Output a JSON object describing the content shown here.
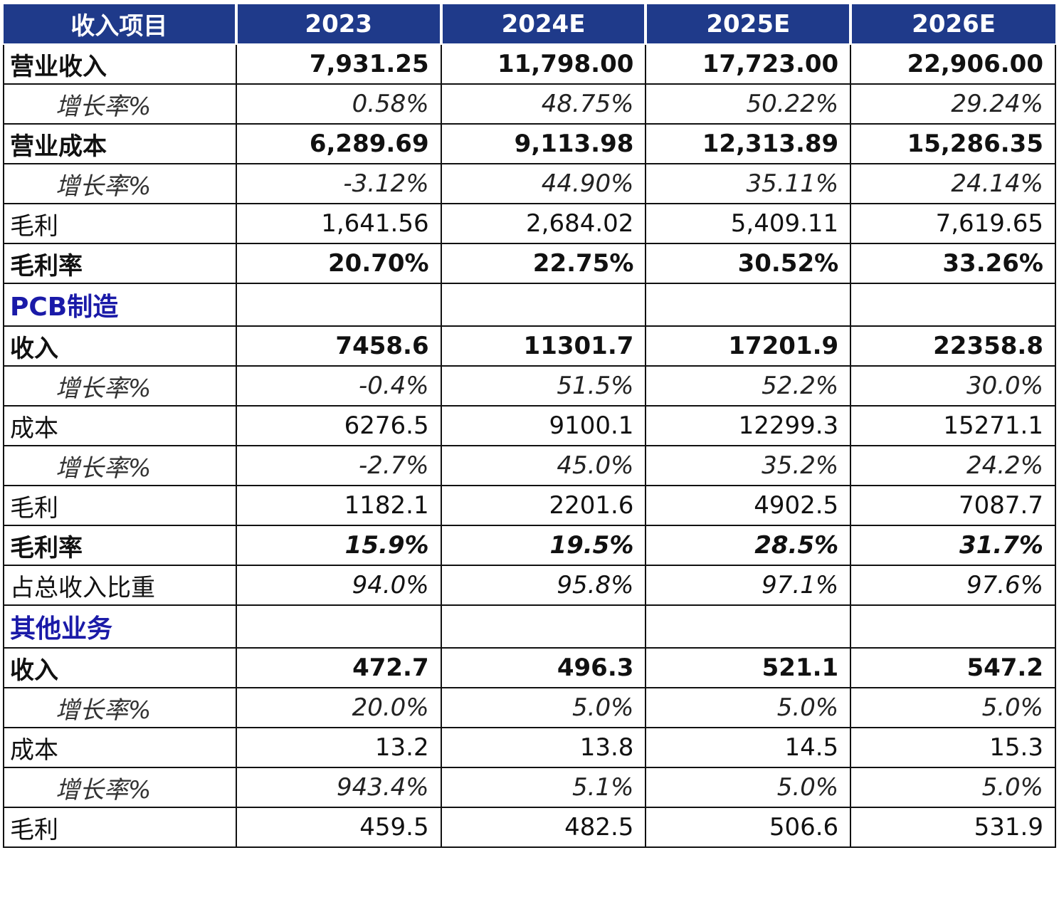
{
  "header": {
    "label": "收入项目",
    "years": [
      "2023",
      "2024E",
      "2025E",
      "2026E"
    ]
  },
  "rows": [
    {
      "type": "bold",
      "label": "营业收入",
      "values": [
        "7,931.25",
        "11,798.00",
        "17,723.00",
        "22,906.00"
      ]
    },
    {
      "type": "rate",
      "label": "增长率%",
      "values": [
        "0.58%",
        "48.75%",
        "50.22%",
        "29.24%"
      ]
    },
    {
      "type": "bold",
      "label": "营业成本",
      "values": [
        "6,289.69",
        "9,113.98",
        "12,313.89",
        "15,286.35"
      ]
    },
    {
      "type": "rate",
      "label": "增长率%",
      "values": [
        "-3.12%",
        "44.90%",
        "35.11%",
        "24.14%"
      ]
    },
    {
      "type": "plain",
      "label": "毛利",
      "values": [
        "1,641.56",
        "2,684.02",
        "5,409.11",
        "7,619.65"
      ]
    },
    {
      "type": "bold",
      "label": "毛利率",
      "values": [
        "20.70%",
        "22.75%",
        "30.52%",
        "33.26%"
      ]
    },
    {
      "type": "section",
      "label": "PCB制造",
      "values": [
        "",
        "",
        "",
        ""
      ]
    },
    {
      "type": "bold",
      "label": "收入",
      "values": [
        "7458.6",
        "11301.7",
        "17201.9",
        "22358.8"
      ]
    },
    {
      "type": "rate",
      "label": "增长率%",
      "values": [
        "-0.4%",
        "51.5%",
        "52.2%",
        "30.0%"
      ]
    },
    {
      "type": "plain",
      "label": "成本",
      "values": [
        "6276.5",
        "9100.1",
        "12299.3",
        "15271.1"
      ]
    },
    {
      "type": "rate",
      "label": "增长率%",
      "values": [
        "-2.7%",
        "45.0%",
        "35.2%",
        "24.2%"
      ]
    },
    {
      "type": "plain",
      "label": "毛利",
      "values": [
        "1182.1",
        "2201.6",
        "4902.5",
        "7087.7"
      ]
    },
    {
      "type": "boldrate",
      "label": "毛利率",
      "values": [
        "15.9%",
        "19.5%",
        "28.5%",
        "31.7%"
      ]
    },
    {
      "type": "ratio",
      "label": "占总收入比重",
      "values": [
        "94.0%",
        "95.8%",
        "97.1%",
        "97.6%"
      ]
    },
    {
      "type": "section",
      "label": "其他业务",
      "values": [
        "",
        "",
        "",
        ""
      ]
    },
    {
      "type": "bold",
      "label": "收入",
      "values": [
        "472.7",
        "496.3",
        "521.1",
        "547.2"
      ]
    },
    {
      "type": "rate",
      "label": "增长率%",
      "values": [
        "20.0%",
        "5.0%",
        "5.0%",
        "5.0%"
      ]
    },
    {
      "type": "plain",
      "label": "成本",
      "values": [
        "13.2",
        "13.8",
        "14.5",
        "15.3"
      ]
    },
    {
      "type": "rate",
      "label": "增长率%",
      "values": [
        "943.4%",
        "5.1%",
        "5.0%",
        "5.0%"
      ]
    },
    {
      "type": "plain",
      "label": "毛利",
      "values": [
        "459.5",
        "482.5",
        "506.6",
        "531.9"
      ]
    }
  ]
}
